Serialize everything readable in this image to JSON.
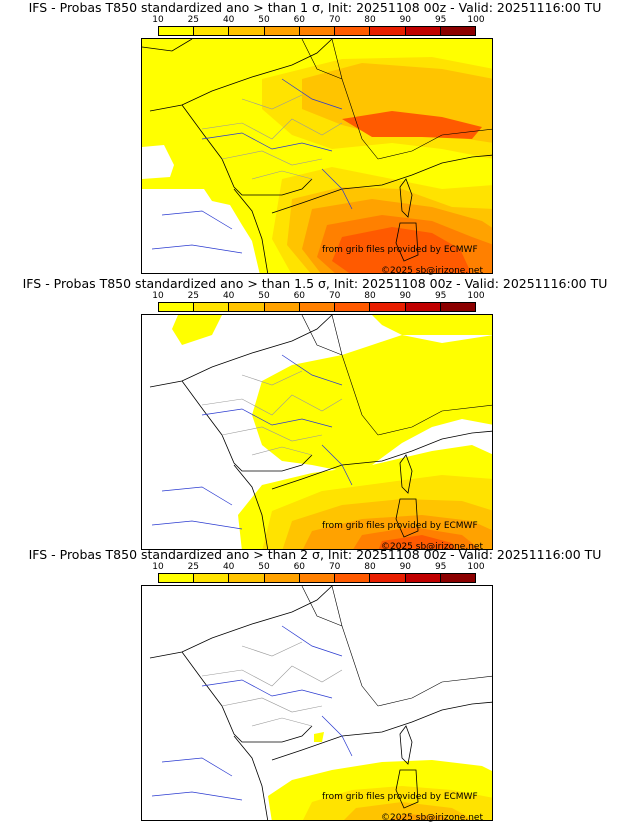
{
  "colorbar": {
    "ticks": [
      "10",
      "25",
      "40",
      "50",
      "60",
      "70",
      "80",
      "90",
      "95",
      "100"
    ],
    "colors": [
      "#ffff00",
      "#ffe300",
      "#ffc400",
      "#ffa200",
      "#ff8000",
      "#ff5a00",
      "#e81e00",
      "#c00000",
      "#8b0000"
    ]
  },
  "panels": [
    {
      "title": "IFS - Probas T850  standardized ano > than 1 σ, Init: 20251108 00z - Valid: 20251116:00 TU",
      "threshold_sigma": 1,
      "coverage": "wide"
    },
    {
      "title": "IFS - Probas T850  standardized ano > than 1.5 σ, Init: 20251108 00z - Valid: 20251116:00 TU",
      "threshold_sigma": 1.5,
      "coverage": "medium"
    },
    {
      "title": "IFS - Probas T850  standardized ano > than 2 σ, Init: 20251108 00z - Valid: 20251116:00 TU",
      "threshold_sigma": 2,
      "coverage": "south"
    }
  ],
  "credits": {
    "source": "from grib files provided by ECMWF",
    "copyright": "©2025 sb@irizone.net"
  }
}
